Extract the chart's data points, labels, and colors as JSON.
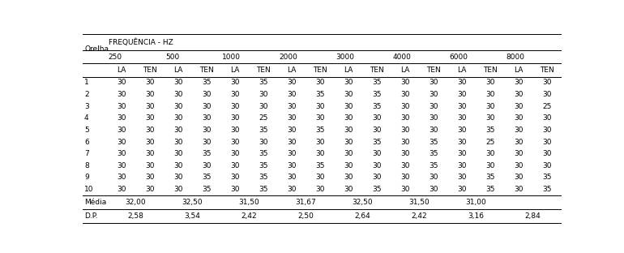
{
  "title_top": "FREQUÊNCIA - HZ",
  "row_label": "Orelha",
  "frequencies": [
    "250",
    "500",
    "1000",
    "2000",
    "3000",
    "4000",
    "6000",
    "8000"
  ],
  "data_rows": [
    [
      "1",
      30,
      30,
      30,
      35,
      30,
      35,
      30,
      30,
      30,
      35,
      30,
      30,
      30,
      30,
      30,
      30
    ],
    [
      "2",
      30,
      30,
      30,
      30,
      30,
      30,
      30,
      35,
      30,
      35,
      30,
      30,
      30,
      30,
      30,
      30
    ],
    [
      "3",
      30,
      30,
      30,
      30,
      30,
      30,
      30,
      30,
      30,
      35,
      30,
      30,
      30,
      30,
      30,
      25
    ],
    [
      "4",
      30,
      30,
      30,
      30,
      30,
      25,
      30,
      30,
      30,
      30,
      30,
      30,
      30,
      30,
      30,
      30
    ],
    [
      "5",
      30,
      30,
      30,
      30,
      30,
      35,
      30,
      35,
      30,
      30,
      30,
      30,
      30,
      35,
      30,
      30
    ],
    [
      "6",
      30,
      30,
      30,
      30,
      30,
      30,
      30,
      30,
      30,
      35,
      30,
      35,
      30,
      25,
      30,
      30
    ],
    [
      "7",
      30,
      30,
      30,
      35,
      30,
      35,
      30,
      30,
      30,
      30,
      30,
      35,
      30,
      30,
      30,
      30
    ],
    [
      "8",
      30,
      30,
      30,
      30,
      30,
      35,
      30,
      35,
      30,
      30,
      30,
      35,
      30,
      30,
      30,
      30
    ],
    [
      "9",
      30,
      30,
      30,
      35,
      30,
      35,
      30,
      30,
      30,
      30,
      30,
      30,
      30,
      35,
      30,
      35
    ],
    [
      "10",
      30,
      30,
      30,
      35,
      30,
      35,
      30,
      30,
      30,
      35,
      30,
      30,
      30,
      35,
      30,
      35
    ]
  ],
  "media_vals": [
    "32,00",
    "32,50",
    "31,50",
    "31,67",
    "32,50",
    "31,50",
    "31,00",
    ""
  ],
  "dp_vals": [
    "2,58",
    "3,54",
    "2,42",
    "2,50",
    "2,64",
    "2,42",
    "3,16",
    "2,84"
  ],
  "bg_color": "#ffffff",
  "text_color": "#000000",
  "line_color": "#000000",
  "font_size": 6.5
}
